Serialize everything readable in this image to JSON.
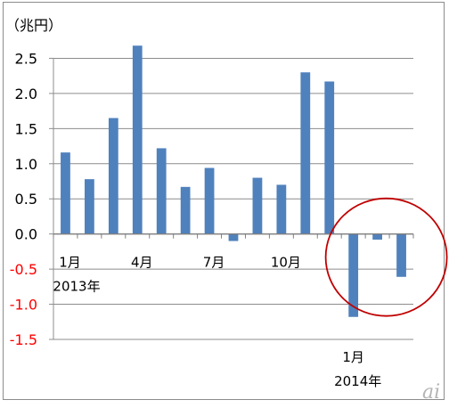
{
  "chart_data": {
    "type": "bar",
    "unit_label": "（兆円）",
    "categories": [
      "2013-01",
      "2013-02",
      "2013-03",
      "2013-04",
      "2013-05",
      "2013-06",
      "2013-07",
      "2013-08",
      "2013-09",
      "2013-10",
      "2013-11",
      "2013-12",
      "2014-01",
      "2014-02",
      "2014-03"
    ],
    "values": [
      1.16,
      0.78,
      1.65,
      2.68,
      1.22,
      0.67,
      0.94,
      -0.1,
      0.8,
      0.7,
      2.3,
      2.17,
      -1.18,
      -0.08,
      -0.61
    ],
    "ylim": [
      -1.5,
      3.0
    ],
    "y_ticks": [
      "2.5",
      "2.0",
      "1.5",
      "1.0",
      "0.5",
      "0.0",
      "-0.5",
      "-1.0",
      "-1.5"
    ],
    "x_labels": [
      {
        "text": "1月",
        "index": 0
      },
      {
        "text": "2013年",
        "index": 0
      },
      {
        "text": "4月",
        "index": 3
      },
      {
        "text": "7月",
        "index": 6
      },
      {
        "text": "10月",
        "index": 9
      },
      {
        "text": "1月",
        "index": 12
      },
      {
        "text": "2014年",
        "index": 12
      }
    ],
    "bar_color": "#4f81bd",
    "negative_tick_color": "#ff0000",
    "highlight": {
      "shape": "circle",
      "color": "#c00000",
      "target_indices": [
        12,
        13,
        14
      ]
    },
    "grid": "horizontal",
    "legend": "none"
  },
  "watermark": "ai"
}
